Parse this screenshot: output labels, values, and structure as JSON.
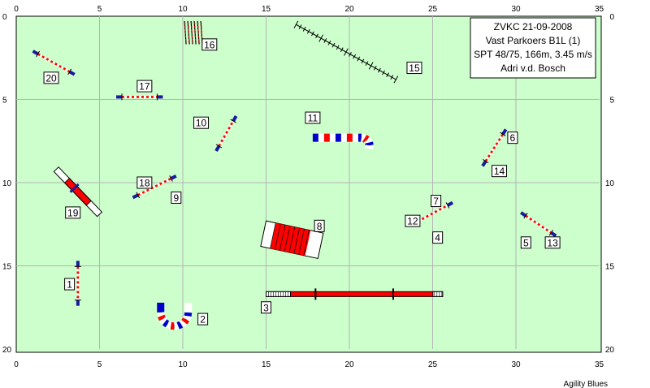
{
  "header": {
    "line1": "ZVKC 21-09-2008",
    "line2": "Vast Parkoers B1L (1)",
    "line3": "SPT 48/75, 166m, 3.45 m/s",
    "line4": "Adri v.d. Bosch"
  },
  "footer": {
    "credit": "Agility Blues"
  },
  "colors": {
    "field": "#ccffcc",
    "grid": "#b4b4b4",
    "red": "#ff0000",
    "blue": "#0000cc",
    "navy": "#1a1aa0"
  },
  "axes": {
    "x_ticks": [
      "0",
      "5",
      "10",
      "15",
      "20",
      "25",
      "30",
      "35"
    ],
    "y_ticks": [
      "0",
      "5",
      "10",
      "15",
      "20"
    ],
    "x_range": [
      0,
      35
    ],
    "y_range": [
      0,
      20
    ],
    "grid_step": 5,
    "unit": "m"
  },
  "obstacles": [
    {
      "type": "hurdle",
      "x1": 1.0,
      "y1": 2.1,
      "x2": 3.5,
      "y2": 3.5
    },
    {
      "type": "hurdle",
      "x1": 6.0,
      "y1": 4.85,
      "x2": 8.8,
      "y2": 4.85
    },
    {
      "type": "hurdle",
      "x1": 12.0,
      "y1": 8.1,
      "x2": 13.2,
      "y2": 6.0
    },
    {
      "type": "hurdle",
      "x1": 7.0,
      "y1": 10.9,
      "x2": 9.6,
      "y2": 9.6
    },
    {
      "type": "hurdle",
      "x1": 3.7,
      "y1": 14.7,
      "x2": 3.7,
      "y2": 17.4
    },
    {
      "type": "hurdle",
      "x1": 28.0,
      "y1": 9.0,
      "x2": 29.4,
      "y2": 6.8
    },
    {
      "type": "hurdle",
      "x1": 23.8,
      "y1": 12.5,
      "x2": 26.2,
      "y2": 11.2
    },
    {
      "type": "hurdle",
      "x1": 30.3,
      "y1": 11.8,
      "x2": 32.4,
      "y2": 13.2
    },
    {
      "type": "long_jump",
      "x1": 16.8,
      "y1": 0.5,
      "x2": 22.8,
      "y2": 3.8
    },
    {
      "type": "slalom",
      "x1": 10.2,
      "y1": 0.0,
      "x2": 10.2,
      "y2": 1.2
    },
    {
      "type": "dogwalk",
      "x1": 15.0,
      "y1": 16.7,
      "x2": 25.6,
      "y2": 16.7
    },
    {
      "type": "seesaw",
      "x1": 2.4,
      "y1": 9.2,
      "x2": 5.0,
      "y2": 11.9
    },
    {
      "type": "tunnel_u",
      "cx": 9.5,
      "cy": 17.8
    },
    {
      "type": "tunnel_c",
      "x": 17.8,
      "y": 7.3
    },
    {
      "type": "chute",
      "x1": 15.0,
      "y1": 12.3,
      "x2": 17.0,
      "y2": 13.0
    }
  ],
  "labels": [
    {
      "text": "1",
      "x": 3.2,
      "y": 16.1
    },
    {
      "text": "2",
      "x": 11.2,
      "y": 18.2
    },
    {
      "text": "3",
      "x": 15.0,
      "y": 17.5
    },
    {
      "text": "4",
      "x": 25.3,
      "y": 13.3
    },
    {
      "text": "5",
      "x": 30.6,
      "y": 13.6
    },
    {
      "text": "6",
      "x": 29.8,
      "y": 7.3
    },
    {
      "text": "7",
      "x": 25.2,
      "y": 11.1
    },
    {
      "text": "8",
      "x": 18.2,
      "y": 12.6
    },
    {
      "text": "9",
      "x": 9.6,
      "y": 10.9
    },
    {
      "text": "10",
      "x": 11.1,
      "y": 6.4
    },
    {
      "text": "11",
      "x": 17.8,
      "y": 6.1
    },
    {
      "text": "12",
      "x": 23.8,
      "y": 12.3
    },
    {
      "text": "13",
      "x": 32.2,
      "y": 13.6
    },
    {
      "text": "14",
      "x": 29.0,
      "y": 9.3
    },
    {
      "text": "15",
      "x": 23.9,
      "y": 3.1
    },
    {
      "text": "16",
      "x": 11.6,
      "y": 1.7
    },
    {
      "text": "17",
      "x": 7.7,
      "y": 4.2
    },
    {
      "text": "18",
      "x": 7.7,
      "y": 10.0
    },
    {
      "text": "19",
      "x": 3.4,
      "y": 11.8
    },
    {
      "text": "20",
      "x": 2.1,
      "y": 3.7
    }
  ]
}
